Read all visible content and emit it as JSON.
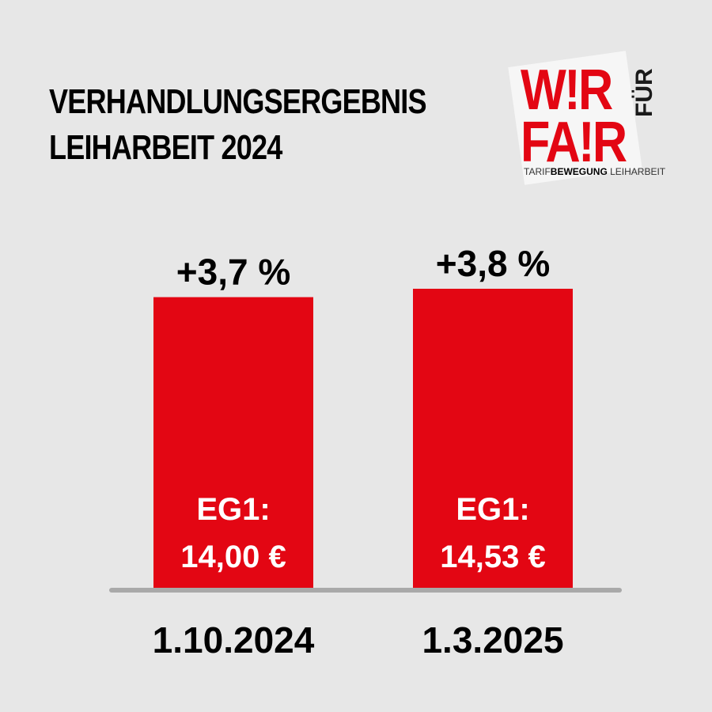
{
  "header": {
    "title_line1": "VERHANDLUNGSERGEBNIS",
    "title_line2": "LEIHARBEIT 2024"
  },
  "logo": {
    "line1": "W!R",
    "line2": "FA!R",
    "vertical": "FÜR",
    "sub_prefix": "TARIF",
    "sub_bold": "BEWEGUNG",
    "sub_suffix": " LEIHARBEIT"
  },
  "colors": {
    "background": "#e7e7e7",
    "bar": "#e30613",
    "baseline": "#a9a9a9"
  },
  "chart_data": {
    "type": "bar",
    "categories": [
      "1.10.2024",
      "1.3.2025"
    ],
    "values": [
      14.0,
      14.53
    ],
    "change_labels": [
      "+3,7 %",
      "+3,8 %"
    ],
    "bar_label_line1": [
      "EG1:",
      "EG1:"
    ],
    "bar_label_line2": [
      "14,00 €",
      "14,53 €"
    ],
    "ylim": [
      0,
      14.53
    ]
  }
}
